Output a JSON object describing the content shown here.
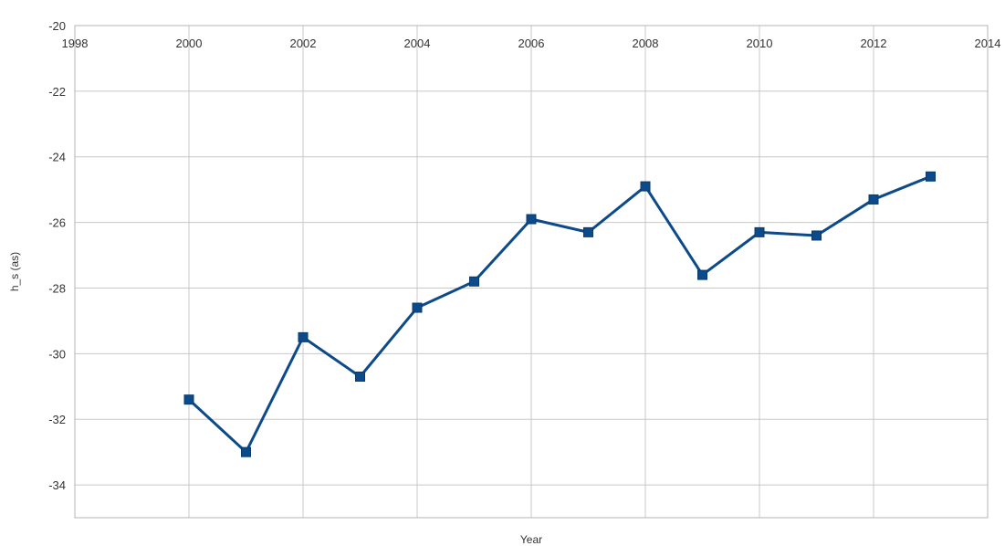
{
  "chart_data": {
    "type": "line",
    "title": "",
    "xlabel": "Year",
    "ylabel": "h_s (as)",
    "xlim": [
      1998,
      2014
    ],
    "ylim": [
      -35,
      -20
    ],
    "x_ticks": [
      1998,
      2000,
      2002,
      2004,
      2006,
      2008,
      2010,
      2012,
      2014
    ],
    "y_ticks": [
      -20,
      -22,
      -24,
      -26,
      -28,
      -30,
      -32,
      -34
    ],
    "grid": true,
    "x_axis_labels_position": "top",
    "legend": "none",
    "series": [
      {
        "color": "#0c4a8a",
        "marker": "square",
        "x": [
          2000,
          2001,
          2002,
          2003,
          2004,
          2005,
          2006,
          2007,
          2008,
          2009,
          2010,
          2011,
          2012,
          2013
        ],
        "y": [
          -31.4,
          -33.0,
          -29.5,
          -30.7,
          -28.6,
          -27.8,
          -25.9,
          -26.3,
          -24.9,
          -27.6,
          -26.3,
          -26.4,
          -25.3,
          -24.6
        ]
      }
    ]
  }
}
